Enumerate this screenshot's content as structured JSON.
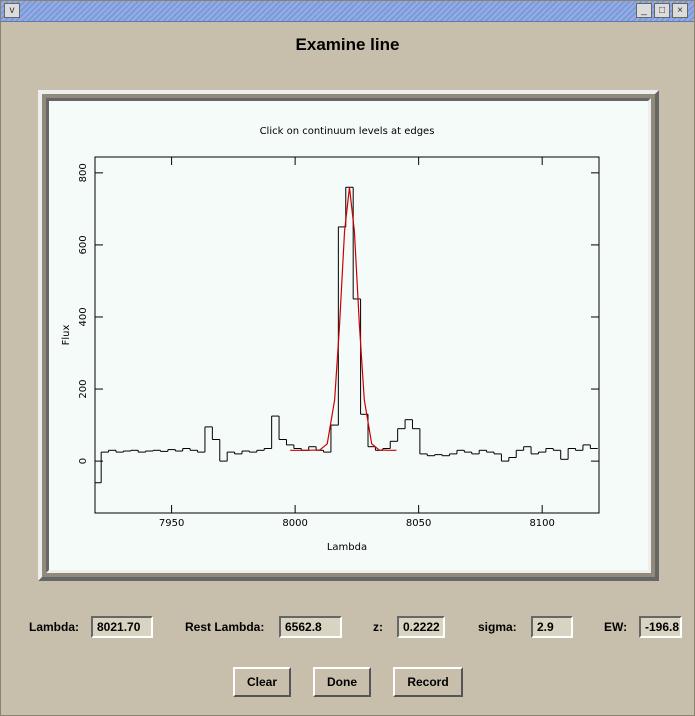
{
  "heading": "Examine line",
  "chart_data": {
    "type": "line",
    "title": "Click on continuum levels at edges",
    "x_label": "Lambda",
    "y_label": "Flux",
    "xlim": [
      7919,
      8123
    ],
    "ylim": [
      -144,
      844
    ],
    "xticks": [
      7950,
      8000,
      8050,
      8100
    ],
    "yticks": [
      0,
      200,
      400,
      600,
      800
    ],
    "series": [
      {
        "color": "#000000",
        "step": true,
        "x": [
          7920,
          7923,
          7926,
          7929,
          7932,
          7935,
          7938,
          7941,
          7944,
          7947,
          7950,
          7953,
          7956,
          7959,
          7962,
          7965,
          7968,
          7971,
          7974,
          7977,
          7980,
          7983,
          7986,
          7989,
          7992,
          7995,
          7998,
          8001,
          8004,
          8007,
          8010,
          8013,
          8016,
          8019,
          8022,
          8025,
          8028,
          8031,
          8034,
          8037,
          8040,
          8043,
          8046,
          8049,
          8052,
          8055,
          8058,
          8061,
          8064,
          8067,
          8070,
          8073,
          8076,
          8079,
          8082,
          8085,
          8088,
          8091,
          8094,
          8097,
          8100,
          8103,
          8106,
          8109,
          8112,
          8115,
          8118,
          8121
        ],
        "values": [
          -60,
          25,
          30,
          25,
          28,
          30,
          25,
          28,
          30,
          27,
          32,
          28,
          35,
          30,
          25,
          95,
          60,
          0,
          25,
          20,
          28,
          25,
          30,
          35,
          125,
          60,
          45,
          35,
          30,
          40,
          30,
          25,
          100,
          650,
          760,
          450,
          130,
          40,
          30,
          35,
          55,
          90,
          115,
          90,
          20,
          15,
          18,
          15,
          20,
          30,
          25,
          20,
          30,
          25,
          20,
          0,
          10,
          30,
          40,
          20,
          25,
          35,
          30,
          5,
          35,
          30,
          45,
          35
        ]
      },
      {
        "color": "#cc0000",
        "step": false,
        "x": [
          7998,
          8005,
          8010,
          8013,
          8016,
          8018,
          8020,
          8022,
          8024,
          8026,
          8028,
          8031,
          8034,
          8038,
          8041
        ],
        "values": [
          30,
          30,
          31,
          48,
          170,
          380,
          637,
          760,
          637,
          380,
          170,
          48,
          31,
          30,
          30
        ]
      }
    ]
  },
  "fields": [
    {
      "label": "Lambda:",
      "value": "8021.70"
    },
    {
      "label": "Rest Lambda:",
      "value": "6562.8"
    },
    {
      "label": "z:",
      "value": "0.2222"
    },
    {
      "label": "sigma:",
      "value": "2.9"
    },
    {
      "label": "EW:",
      "value": "-196.8"
    }
  ],
  "buttons": [
    "Clear",
    "Done",
    "Record"
  ]
}
